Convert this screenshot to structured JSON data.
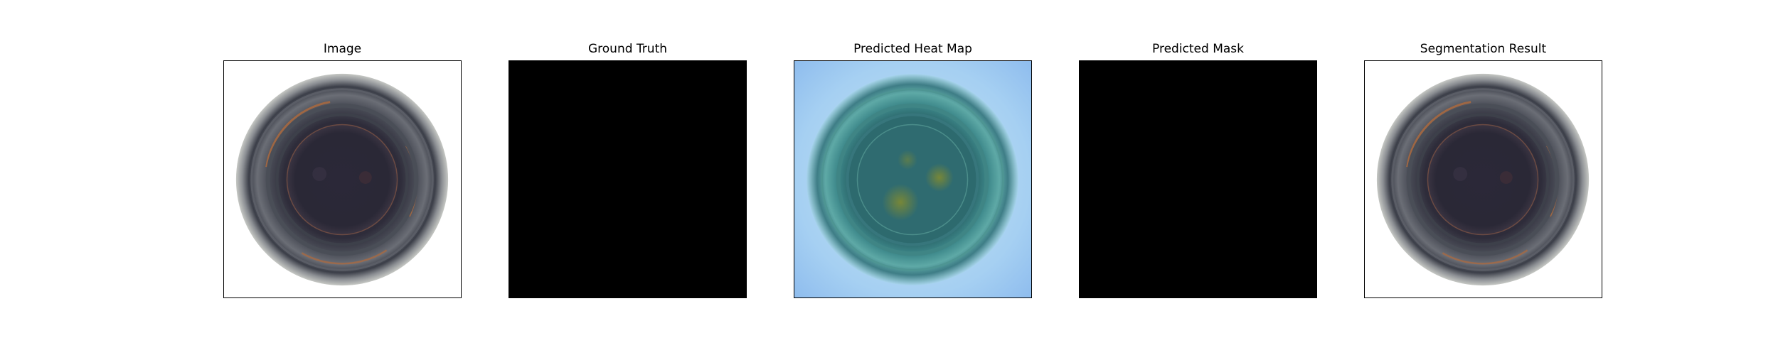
{
  "figure": {
    "panels": [
      {
        "title": "Image"
      },
      {
        "title": "Ground Truth"
      },
      {
        "title": "Predicted Heat Map"
      },
      {
        "title": "Predicted Mask"
      },
      {
        "title": "Segmentation Result"
      }
    ]
  },
  "colors": {
    "background": "#ffffff",
    "mask_fill": "#000000",
    "heatmap_background": "#9cc6f0",
    "part_dark_center": "#2b2838",
    "part_rim": "#3c3f48",
    "rust_tone": "#b06a3c"
  },
  "icons": {
    "object": "bottle-cap-image"
  }
}
